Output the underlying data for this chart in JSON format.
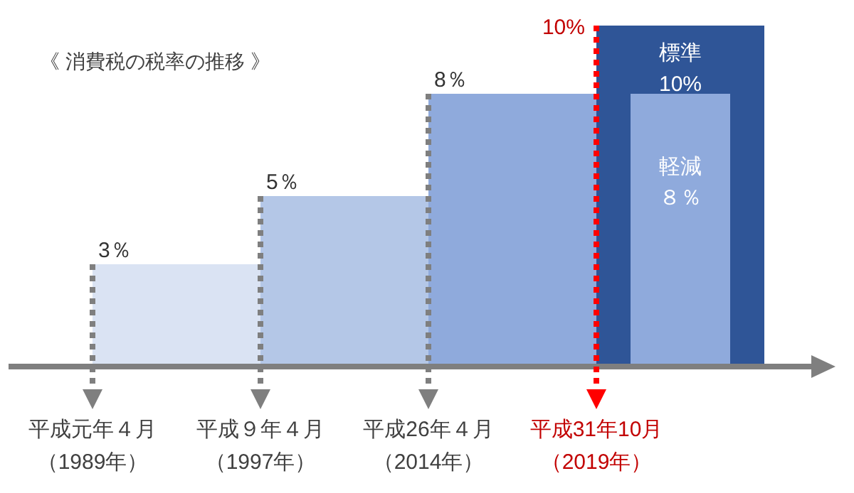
{
  "chart_data": {
    "type": "bar",
    "title": "《 消費税の税率の推移 》",
    "categories": [
      "平成元年４月（1989年）",
      "平成９年４月（1997年）",
      "平成26年４月（2014年）",
      "平成31年10月（2019年）"
    ],
    "series": [
      {
        "values": [
          3,
          5,
          8,
          null
        ],
        "colors": [
          "#dae3f3",
          "#b4c7e7",
          "#8faadc",
          null
        ],
        "value_labels": [
          "3％",
          "5％",
          "8％",
          null
        ]
      },
      {
        "name": "標準",
        "color": "#2f5597",
        "values": [
          null,
          null,
          null,
          10
        ],
        "value_labels": [
          null,
          null,
          null,
          "10%"
        ]
      },
      {
        "name": "軽減",
        "color": "#8faadc",
        "values": [
          null,
          null,
          null,
          8
        ],
        "value_labels": [
          null,
          null,
          null,
          "８％"
        ]
      }
    ],
    "annotations": [
      {
        "text": "10%",
        "x": "平成31年10月（2019年）",
        "y": 10
      }
    ],
    "ref_lines": [
      {
        "axis": "x",
        "value": "平成元年４月（1989年）",
        "color": "#7f7f7f",
        "line_style": "dotted"
      },
      {
        "axis": "x",
        "value": "平成９年４月（1997年）",
        "color": "#7f7f7f",
        "line_style": "dotted"
      },
      {
        "axis": "x",
        "value": "平成26年４月（2014年）",
        "color": "#7f7f7f",
        "line_style": "dotted"
      },
      {
        "axis": "x",
        "value": "平成31年10月（2019年）",
        "color": "#ff0000",
        "line_style": "dotted"
      }
    ]
  }
}
